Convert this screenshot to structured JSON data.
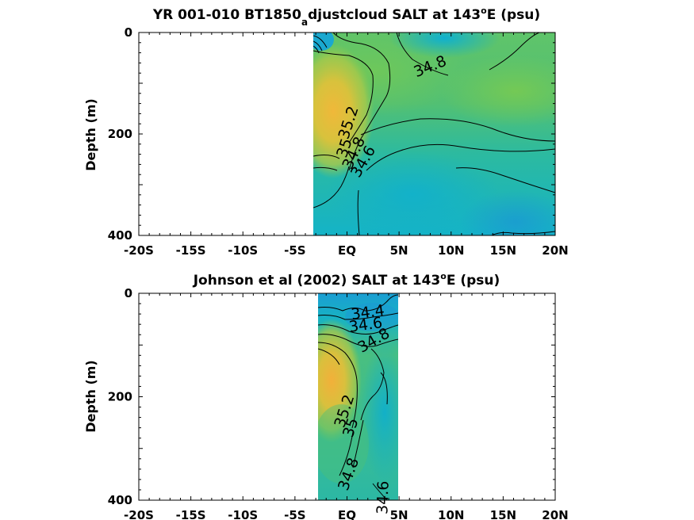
{
  "chart_data": [
    {
      "type": "contour",
      "title_parts": {
        "pre": "YR 001-010 BT1850",
        "sub": "a",
        "mid": "djustcloud SALT at 143",
        "sup": "o",
        "post": "E (psu)"
      },
      "ylabel": "Depth (m)",
      "xlim": [
        -20,
        20
      ],
      "ylim": [
        0,
        400
      ],
      "x_ticks": [
        -20,
        -15,
        -10,
        -5,
        0,
        5,
        10,
        15,
        20
      ],
      "x_tick_labels": [
        "-20S",
        "-15S",
        "-10S",
        "-5S",
        "EQ",
        "5N",
        "10N",
        "15N",
        "20N"
      ],
      "y_ticks": [
        0,
        200,
        400
      ],
      "y_tick_labels": [
        "0",
        "200",
        "400"
      ],
      "data_x_range": [
        -3.5,
        20
      ],
      "contour_labels": [
        {
          "text": "34.8",
          "x": 8,
          "y": 68,
          "angle": -22
        },
        {
          "text": "35.2",
          "x": 0.2,
          "y": 178,
          "angle": -72
        },
        {
          "text": "35",
          "x": -0.2,
          "y": 228,
          "angle": -72
        },
        {
          "text": "34.8",
          "x": 0.7,
          "y": 238,
          "angle": -65
        },
        {
          "text": "34.6",
          "x": 1.6,
          "y": 255,
          "angle": -60
        }
      ]
    },
    {
      "type": "contour",
      "title_parts": {
        "pre": "Johnson et al (2002) SALT at 143",
        "sub": "",
        "mid": "",
        "sup": "o",
        "post": "E (psu)"
      },
      "ylabel": "Depth (m)",
      "xlim": [
        -20,
        20
      ],
      "ylim": [
        0,
        400
      ],
      "x_ticks": [
        -20,
        -15,
        -10,
        -5,
        0,
        5,
        10,
        15,
        20
      ],
      "x_tick_labels": [
        "-20S",
        "-15S",
        "-10S",
        "-5S",
        "EQ",
        "5N",
        "10N",
        "15N",
        "20N"
      ],
      "y_ticks": [
        0,
        200,
        400
      ],
      "y_tick_labels": [
        "0",
        "200",
        "400"
      ],
      "data_x_range": [
        -2.7,
        5
      ],
      "contour_labels": [
        {
          "text": "34.4",
          "x": 2,
          "y": 38,
          "angle": -8
        },
        {
          "text": "34.6",
          "x": 1.8,
          "y": 62,
          "angle": -8
        },
        {
          "text": "34.8",
          "x": 2.6,
          "y": 92,
          "angle": -30
        },
        {
          "text": "35.2",
          "x": -0.2,
          "y": 228,
          "angle": -72
        },
        {
          "text": "35",
          "x": 0.4,
          "y": 260,
          "angle": -72
        },
        {
          "text": "34.8",
          "x": 0.2,
          "y": 350,
          "angle": -70
        },
        {
          "text": "34.6",
          "x": 3.5,
          "y": 395,
          "angle": -88
        }
      ]
    }
  ]
}
